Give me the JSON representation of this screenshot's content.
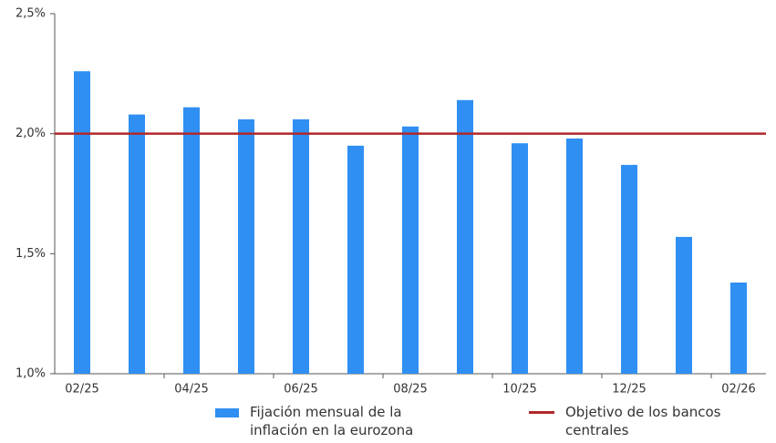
{
  "chart_data": {
    "type": "bar",
    "categories": [
      "02/25",
      null,
      "04/25",
      null,
      "06/25",
      null,
      "08/25",
      null,
      "10/25",
      null,
      "12/25",
      null,
      "02/26"
    ],
    "series": [
      {
        "name": "Fijación mensual de la inflación en la eurozona",
        "color": "#2f8ff2",
        "type": "bar",
        "values": [
          2.26,
          2.08,
          2.11,
          2.06,
          2.06,
          1.95,
          2.03,
          2.14,
          1.96,
          1.98,
          1.87,
          1.57,
          1.38
        ]
      },
      {
        "name": "Objetivo de los bancos centrales",
        "color": "#b0282a",
        "type": "line",
        "value": 2.0
      }
    ],
    "ylim": [
      1.0,
      2.5
    ],
    "yticks": [
      {
        "value": 1.0,
        "label": "1,0%"
      },
      {
        "value": 1.5,
        "label": "1,5%"
      },
      {
        "value": 2.0,
        "label": "2,0%"
      },
      {
        "value": 2.5,
        "label": "2,5%"
      }
    ],
    "grid": false
  }
}
